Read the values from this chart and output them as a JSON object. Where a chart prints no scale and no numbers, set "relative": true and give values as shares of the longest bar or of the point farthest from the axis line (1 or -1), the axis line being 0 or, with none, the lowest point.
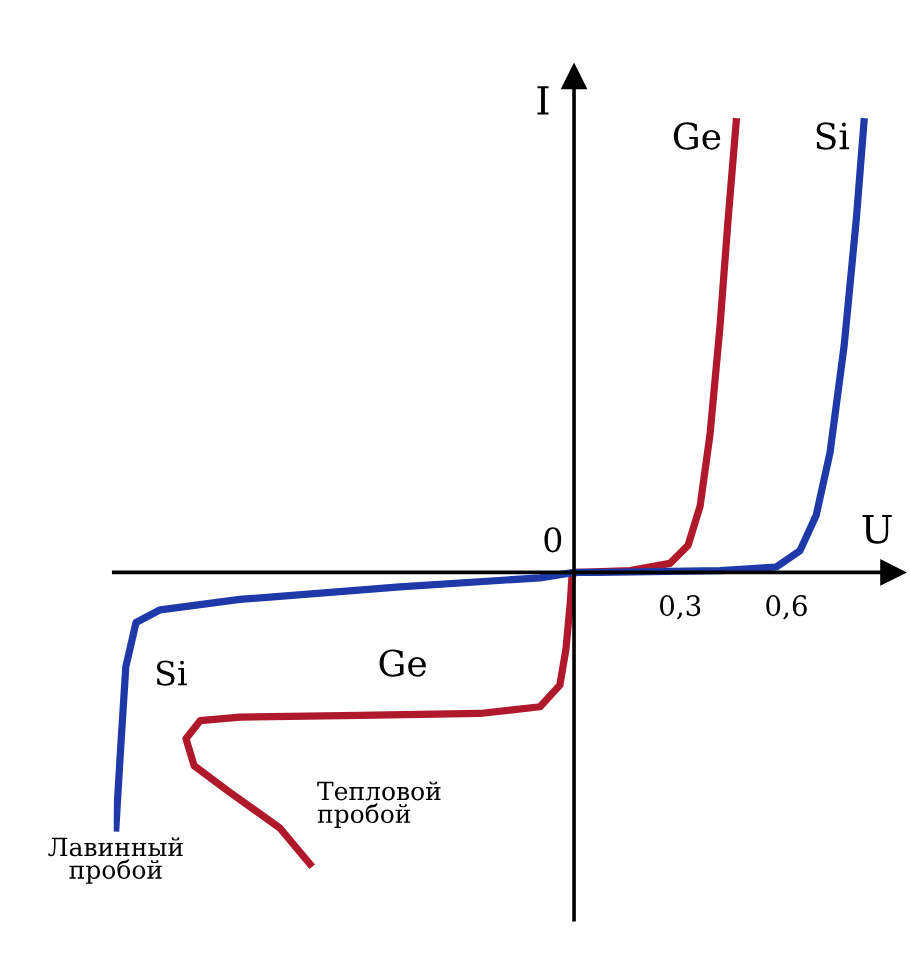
{
  "chart_data": {
    "type": "line",
    "relative": true,
    "xlabel": "U",
    "ylabel": "I",
    "xlim": [
      -1.3,
      0.9
    ],
    "xticks": [
      {
        "value": 0.3,
        "label": "0,3"
      },
      {
        "value": 0.6,
        "label": "0,6"
      }
    ],
    "grid": false,
    "marker": "none",
    "line_style": "solid",
    "series": [
      {
        "name": "Ge",
        "color": "#b0182c",
        "x": [
          0.458,
          0.435,
          0.412,
          0.384,
          0.356,
          0.322,
          0.271,
          0.158,
          0.017,
          0,
          -0.006,
          -0.011,
          -0.023,
          -0.04,
          -0.096,
          -0.266,
          -0.605,
          -0.944,
          -1.056,
          -1.096,
          -1.073,
          -0.972,
          -0.831,
          -0.746
        ],
        "values": [
          1.0,
          0.782,
          0.544,
          0.306,
          0.147,
          0.06,
          0.02,
          0.004,
          0,
          0,
          -0.012,
          -0.071,
          -0.171,
          -0.25,
          -0.298,
          -0.313,
          -0.317,
          -0.321,
          -0.329,
          -0.369,
          -0.429,
          -0.488,
          -0.567,
          -0.647
        ]
      },
      {
        "name": "Si",
        "color": "#1f3aa8",
        "x": [
          0.819,
          0.797,
          0.763,
          0.723,
          0.684,
          0.638,
          0.571,
          0.412,
          0.073,
          0,
          -0.096,
          -0.492,
          -0.944,
          -1.169,
          -1.237,
          -1.266,
          -1.282,
          -1.294
        ],
        "values": [
          1,
          0.782,
          0.504,
          0.266,
          0.127,
          0.048,
          0.012,
          0.004,
          0,
          0,
          -0.012,
          -0.032,
          -0.06,
          -0.083,
          -0.111,
          -0.21,
          -0.409,
          -0.567
        ]
      }
    ],
    "annotations": [
      "0",
      {
        "text": "Si",
        "x": -1.266,
        "y": -0.21
      },
      {
        "text": "Ge",
        "x": -0.605,
        "y": -0.317
      },
      {
        "text": "Лавинный\nпробой",
        "x": -1.294,
        "y": -0.567
      },
      {
        "text": "Тепловой\nпробой",
        "x": -0.746,
        "y": -0.647
      }
    ]
  }
}
